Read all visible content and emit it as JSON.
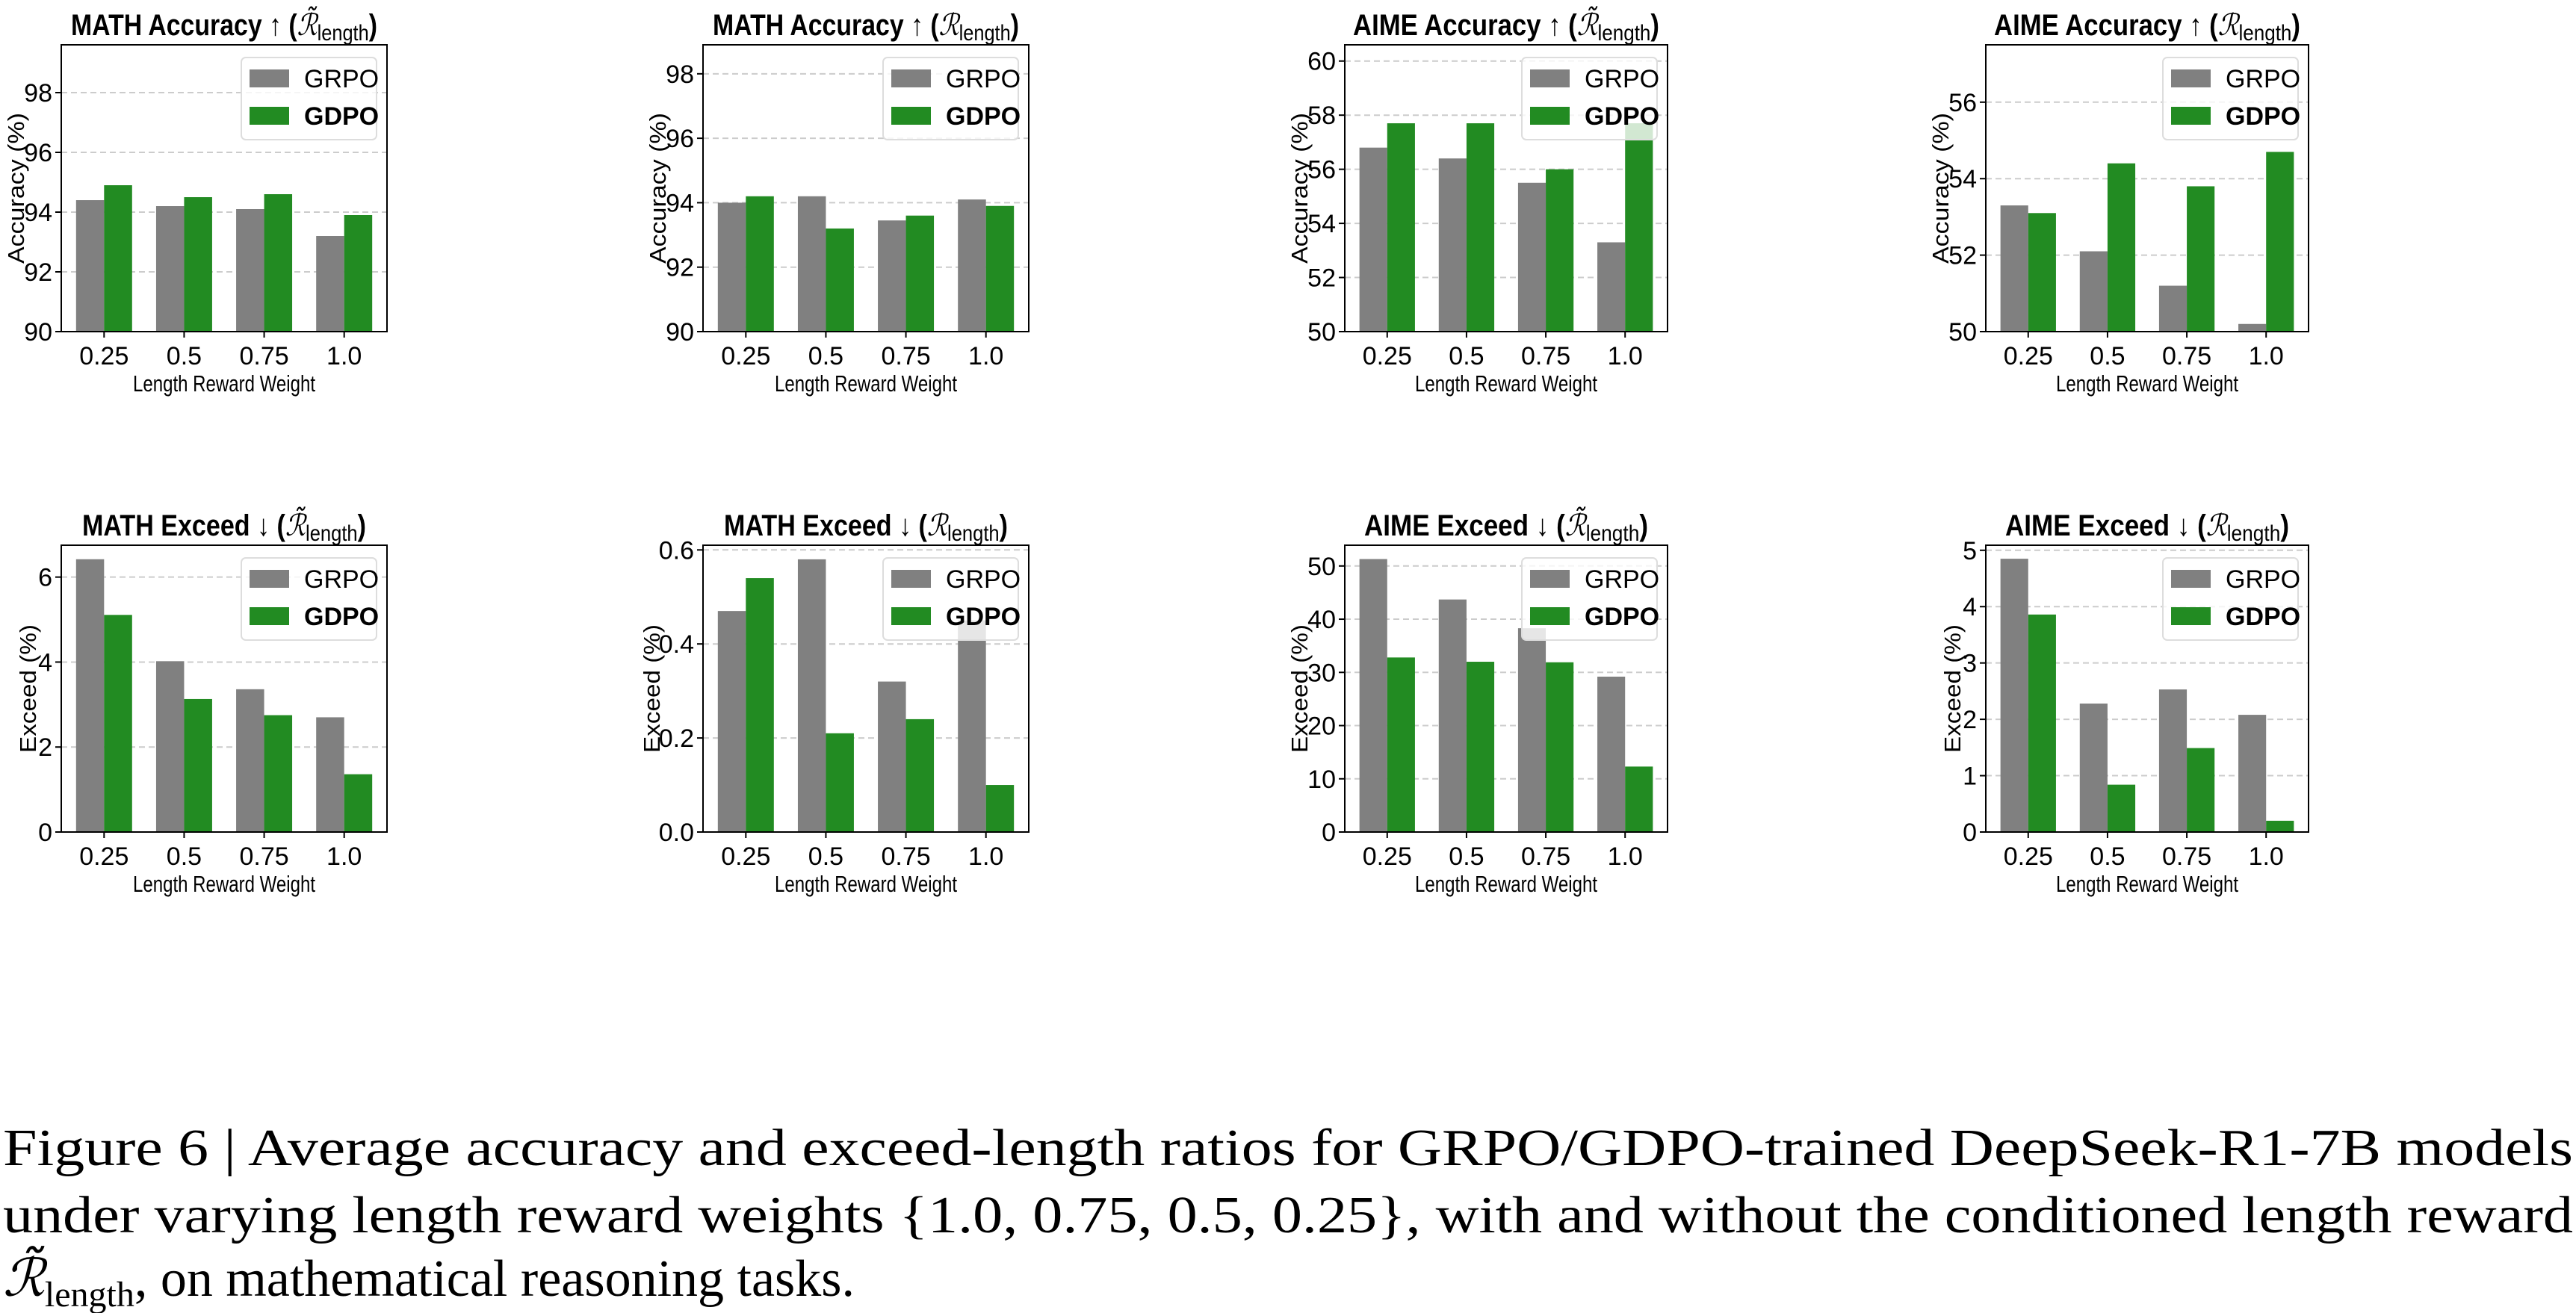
{
  "chart_data": [
    {
      "type": "bar",
      "title": {
        "main": "MATH Accuracy ↑",
        "symbol": "ℛ̃",
        "subscript": "length"
      },
      "xlabel": "Length Reward Weight",
      "ylabel": "Accuracy (%)",
      "categories": [
        "0.25",
        "0.5",
        "0.75",
        "1.0"
      ],
      "yticks": [
        "90",
        "92",
        "94",
        "96",
        "98"
      ],
      "ylim": [
        90,
        99.6
      ],
      "grid": "y-dashed",
      "legend": "top-right",
      "series": [
        {
          "name": "GRPO",
          "values": [
            94.4,
            94.2,
            94.1,
            93.2
          ]
        },
        {
          "name": "GDPO",
          "values": [
            94.9,
            94.5,
            94.6,
            93.9
          ]
        }
      ]
    },
    {
      "type": "bar",
      "title": {
        "main": "MATH Accuracy ↑",
        "symbol": "ℛ",
        "subscript": "length"
      },
      "xlabel": "Length Reward Weight",
      "ylabel": "Accuracy (%)",
      "categories": [
        "0.25",
        "0.5",
        "0.75",
        "1.0"
      ],
      "yticks": [
        "90",
        "92",
        "94",
        "96",
        "98"
      ],
      "ylim": [
        90,
        98.9
      ],
      "grid": "y-dashed",
      "legend": "top-right",
      "series": [
        {
          "name": "GRPO",
          "values": [
            94.0,
            94.2,
            93.45,
            94.1
          ]
        },
        {
          "name": "GDPO",
          "values": [
            94.2,
            93.2,
            93.6,
            93.9
          ]
        }
      ]
    },
    {
      "type": "bar",
      "title": {
        "main": "AIME Accuracy ↑",
        "symbol": "ℛ̃",
        "subscript": "length"
      },
      "xlabel": "Length Reward Weight",
      "ylabel": "Accuracy (%)",
      "categories": [
        "0.25",
        "0.5",
        "0.75",
        "1.0"
      ],
      "yticks": [
        "50",
        "52",
        "54",
        "56",
        "58",
        "60"
      ],
      "ylim": [
        50,
        60.6
      ],
      "grid": "y-dashed",
      "legend": "top-right",
      "series": [
        {
          "name": "GRPO",
          "values": [
            56.8,
            56.4,
            55.5,
            53.3
          ]
        },
        {
          "name": "GDPO",
          "values": [
            57.7,
            57.7,
            56.0,
            57.7
          ]
        }
      ]
    },
    {
      "type": "bar",
      "title": {
        "main": "AIME Accuracy ↑",
        "symbol": "ℛ",
        "subscript": "length"
      },
      "xlabel": "Length Reward Weight",
      "ylabel": "Accuracy (%)",
      "categories": [
        "0.25",
        "0.5",
        "0.75",
        "1.0"
      ],
      "yticks": [
        "50",
        "52",
        "54",
        "56"
      ],
      "ylim": [
        50,
        57.5
      ],
      "grid": "y-dashed",
      "legend": "top-right",
      "series": [
        {
          "name": "GRPO",
          "values": [
            53.3,
            52.1,
            51.2,
            50.2
          ]
        },
        {
          "name": "GDPO",
          "values": [
            53.1,
            54.4,
            53.8,
            54.7
          ]
        }
      ]
    },
    {
      "type": "bar",
      "title": {
        "main": "MATH Exceed ↓",
        "symbol": "ℛ̃",
        "subscript": "length"
      },
      "xlabel": "Length Reward Weight",
      "ylabel": "Exceed (%)",
      "categories": [
        "0.25",
        "0.5",
        "0.75",
        "1.0"
      ],
      "yticks": [
        "0",
        "2",
        "4",
        "6"
      ],
      "ylim": [
        0,
        6.75
      ],
      "grid": "y-dashed",
      "legend": "top-right",
      "series": [
        {
          "name": "GRPO",
          "values": [
            6.42,
            4.02,
            3.36,
            2.7
          ]
        },
        {
          "name": "GDPO",
          "values": [
            5.11,
            3.13,
            2.75,
            1.36
          ]
        }
      ]
    },
    {
      "type": "bar",
      "title": {
        "main": "MATH Exceed ↓",
        "symbol": "ℛ",
        "subscript": "length"
      },
      "xlabel": "Length Reward Weight",
      "ylabel": "Exceed (%)",
      "categories": [
        "0.25",
        "0.5",
        "0.75",
        "1.0"
      ],
      "yticks": [
        "0.0",
        "0.2",
        "0.4",
        "0.6"
      ],
      "ylim": [
        0,
        0.61
      ],
      "grid": "y-dashed",
      "legend": "top-right",
      "series": [
        {
          "name": "GRPO",
          "values": [
            0.47,
            0.58,
            0.32,
            0.45
          ]
        },
        {
          "name": "GDPO",
          "values": [
            0.54,
            0.21,
            0.24,
            0.1
          ]
        }
      ]
    },
    {
      "type": "bar",
      "title": {
        "main": "AIME Exceed ↓",
        "symbol": "ℛ̃",
        "subscript": "length"
      },
      "xlabel": "Length Reward Weight",
      "ylabel": "Exceed (%)",
      "categories": [
        "0.25",
        "0.5",
        "0.75",
        "1.0"
      ],
      "yticks": [
        "0",
        "10",
        "20",
        "30",
        "40",
        "50"
      ],
      "ylim": [
        0,
        53.9
      ],
      "grid": "y-dashed",
      "legend": "top-right",
      "series": [
        {
          "name": "GRPO",
          "values": [
            51.3,
            43.7,
            38.3,
            29.2
          ]
        },
        {
          "name": "GDPO",
          "values": [
            32.8,
            32.0,
            31.9,
            12.3
          ]
        }
      ]
    },
    {
      "type": "bar",
      "title": {
        "main": "AIME Exceed ↓",
        "symbol": "ℛ",
        "subscript": "length"
      },
      "xlabel": "Length Reward Weight",
      "ylabel": "Exceed (%)",
      "categories": [
        "0.25",
        "0.5",
        "0.75",
        "1.0"
      ],
      "yticks": [
        "0",
        "1",
        "2",
        "3",
        "4",
        "5"
      ],
      "ylim": [
        0,
        5.09
      ],
      "grid": "y-dashed",
      "legend": "top-right",
      "series": [
        {
          "name": "GRPO",
          "values": [
            4.85,
            2.28,
            2.53,
            2.08
          ]
        },
        {
          "name": "GDPO",
          "values": [
            3.86,
            0.84,
            1.49,
            0.2
          ]
        }
      ]
    }
  ],
  "colors": {
    "GRPO": "#808080",
    "GDPO": "#228b22",
    "grid": "#cccccc"
  },
  "caption": {
    "line1": "Figure 6 | Average accuracy and exceed-length ratios for GRPO/GDPO-trained DeepSeek-R1-7B models",
    "line2": "under varying length reward weights {1.0, 0.75, 0.5, 0.25}, with and without the conditioned length reward",
    "line3_symbol": "ℛ̃",
    "line3_subscript": "length",
    "line3_rest": ", on mathematical reasoning tasks."
  }
}
